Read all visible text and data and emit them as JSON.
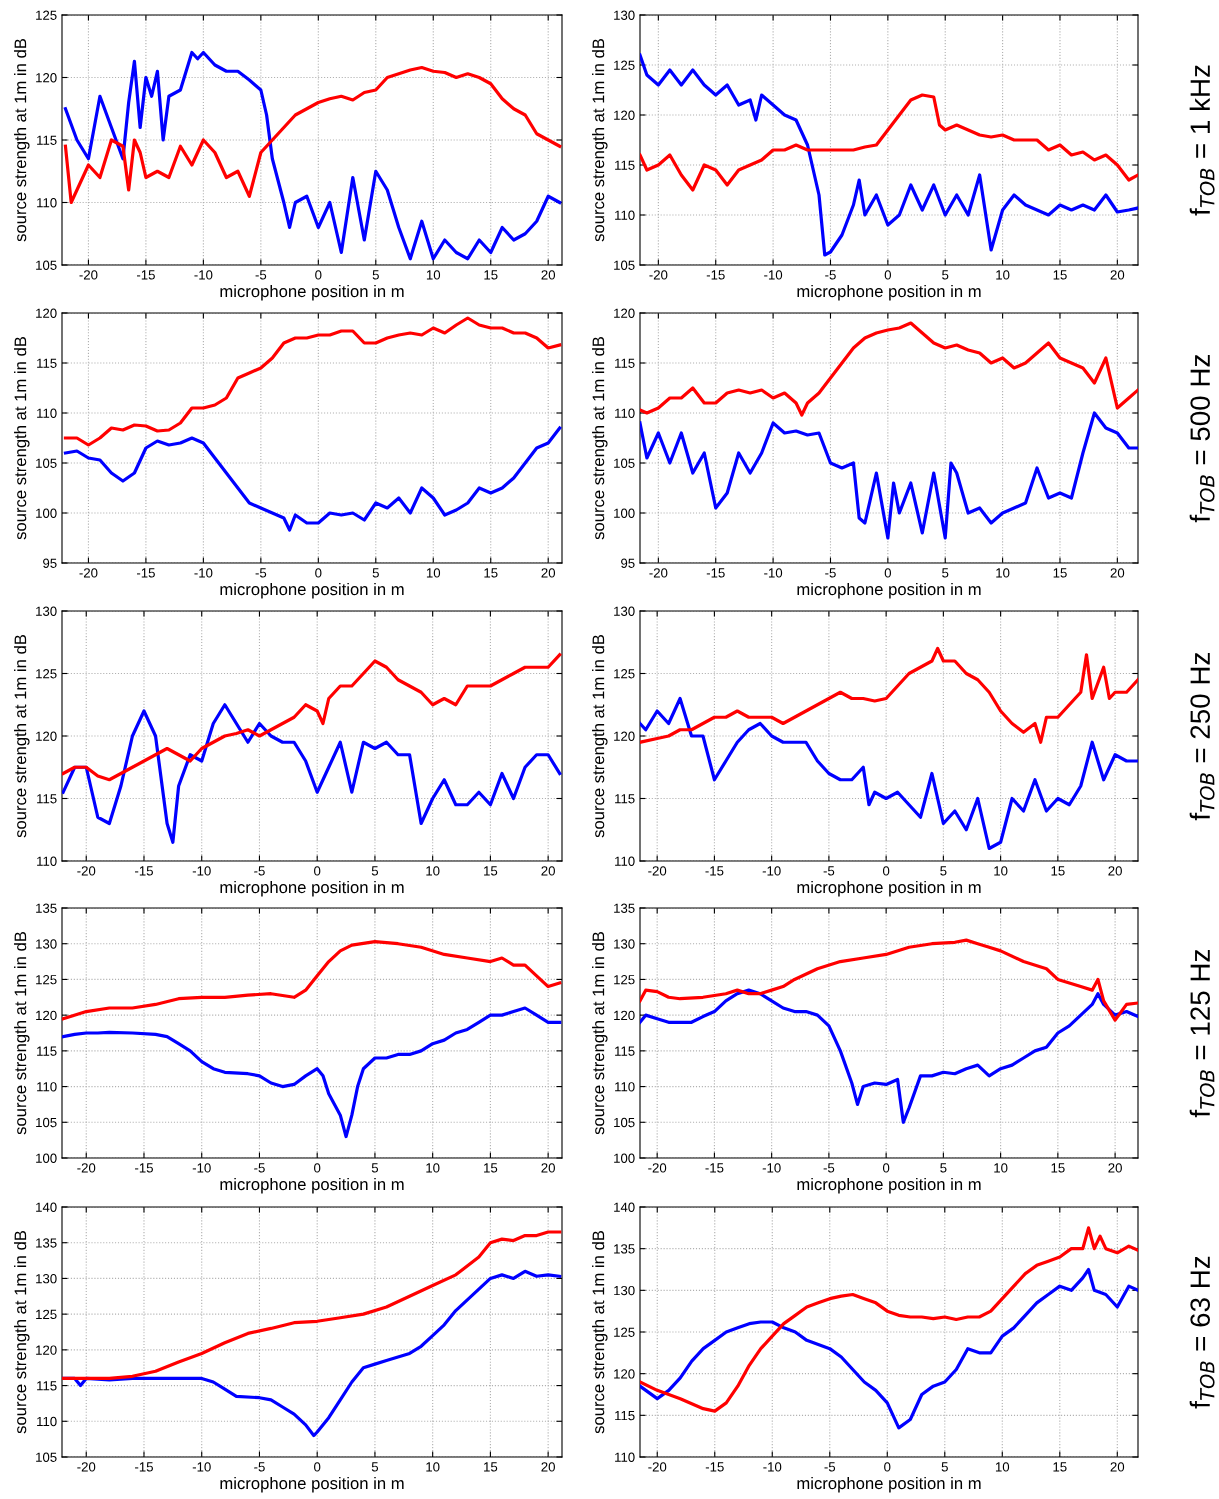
{
  "chart_data": [
    {
      "type": "line",
      "xlabel": "microphone position in m",
      "ylabel": "source strength at 1m in dB",
      "xlim": [
        -22.3,
        21.2
      ],
      "xticks": [
        -20,
        -15,
        -10,
        -5,
        0,
        5,
        10,
        15,
        20
      ],
      "ylim": [
        105,
        125
      ],
      "yticks": [
        105,
        110,
        115,
        120,
        125
      ],
      "grid": true,
      "series": [
        {
          "color": "#ff0000",
          "x": [
            -22,
            -21.5,
            -20,
            -19,
            -18,
            -17,
            -16.5,
            -16,
            -15.5,
            -15,
            -14,
            -13,
            -12,
            -11,
            -10,
            -9,
            -8,
            -7,
            -6,
            -5,
            -4,
            -3,
            -2,
            -1,
            0,
            1,
            2,
            3,
            4,
            5,
            6,
            7,
            8,
            9,
            10,
            11,
            12,
            13,
            14,
            15,
            16,
            17,
            18,
            19,
            20,
            21
          ],
          "values": [
            114.5,
            110,
            113,
            112,
            115,
            114.5,
            111,
            115,
            114,
            112,
            112.5,
            112,
            114.5,
            113,
            115,
            114,
            112,
            112.5,
            110.5,
            114,
            115,
            116,
            117,
            117.5,
            118,
            118.3,
            118.5,
            118.2,
            118.8,
            119,
            120,
            120.3,
            120.6,
            120.8,
            120.5,
            120.4,
            120,
            120.3,
            120,
            119.5,
            118.3,
            117.5,
            117,
            115.5,
            115,
            114.5
          ]
        },
        {
          "color": "#0000ff",
          "x": [
            -22,
            -21,
            -20,
            -19.5,
            -19,
            -18,
            -17,
            -16.5,
            -16,
            -15.5,
            -15,
            -14.5,
            -14,
            -13.5,
            -13,
            -12,
            -11,
            -10.5,
            -10,
            -9,
            -8,
            -7,
            -6,
            -5,
            -4.5,
            -4,
            -3,
            -2.5,
            -2,
            -1,
            0,
            1,
            2,
            3,
            4,
            5,
            6,
            7,
            8,
            9,
            10,
            11,
            12,
            13,
            14,
            15,
            16,
            17,
            18,
            19,
            20,
            21
          ],
          "values": [
            117.5,
            115,
            113.5,
            116,
            118.5,
            116,
            113.5,
            118,
            121.3,
            116,
            120,
            118.5,
            120.5,
            115,
            118.5,
            119,
            122,
            121.5,
            122,
            121,
            120.5,
            120.5,
            119.8,
            119,
            117,
            113.5,
            110,
            108,
            110,
            110.5,
            108,
            110,
            106,
            112,
            107,
            112.5,
            111,
            108,
            105.5,
            108.5,
            105.5,
            107,
            106,
            105.5,
            107,
            106,
            108,
            107,
            107.5,
            108.5,
            110.5,
            110
          ]
        }
      ]
    },
    {
      "type": "line",
      "xlabel": "microphone position in m",
      "ylabel": "source strength at 1m in dB",
      "xlim": [
        -21.6,
        21.8
      ],
      "xticks": [
        -20,
        -15,
        -10,
        -5,
        0,
        5,
        10,
        15,
        20
      ],
      "ylim": [
        105,
        130
      ],
      "yticks": [
        105,
        110,
        115,
        120,
        125,
        130
      ],
      "grid": true,
      "annotations": [
        "f$_{TOB}$ = 1 kHz"
      ],
      "series": [
        {
          "color": "#ff0000",
          "x": [
            -21.6,
            -21,
            -20,
            -19,
            -18,
            -17,
            -16,
            -15,
            -14,
            -13,
            -12,
            -11,
            -10,
            -9,
            -8,
            -7,
            -6,
            -5,
            -4,
            -3,
            -2,
            -1,
            0,
            1,
            2,
            3,
            4,
            4.5,
            5,
            6,
            7,
            8,
            9,
            10,
            11,
            12,
            13,
            14,
            15,
            16,
            17,
            18,
            19,
            20,
            21,
            21.8
          ],
          "values": [
            116,
            114.5,
            115,
            116,
            114,
            112.5,
            115,
            114.5,
            113,
            114.5,
            115,
            115.5,
            116.5,
            116.5,
            117,
            116.5,
            116.5,
            116.5,
            116.5,
            116.5,
            116.8,
            117,
            118.5,
            120,
            121.5,
            122,
            121.8,
            119,
            118.5,
            119,
            118.5,
            118,
            117.8,
            118,
            117.5,
            117.5,
            117.5,
            116.5,
            117,
            116,
            116.3,
            115.5,
            116,
            115,
            113.5,
            114
          ]
        },
        {
          "color": "#0000ff",
          "x": [
            -21.6,
            -21,
            -20,
            -19,
            -18,
            -17,
            -16,
            -15,
            -14,
            -13,
            -12,
            -11.5,
            -11,
            -10,
            -9,
            -8,
            -7,
            -6,
            -5.5,
            -5,
            -4,
            -3,
            -2.5,
            -2,
            -1,
            0,
            1,
            2,
            3,
            4,
            5,
            6,
            7,
            8,
            9,
            10,
            11,
            12,
            13,
            14,
            15,
            16,
            17,
            18,
            19,
            20,
            21,
            21.8
          ],
          "values": [
            126,
            124,
            123,
            124.5,
            123,
            124.5,
            123,
            122,
            123,
            121,
            121.5,
            119.5,
            122,
            121,
            120,
            119.5,
            117,
            112,
            106,
            106.3,
            108,
            111,
            113.5,
            110,
            112,
            109,
            110,
            113,
            110.5,
            113,
            110,
            112,
            110,
            114,
            106.5,
            110.5,
            112,
            111,
            110.5,
            110,
            111,
            110.5,
            111,
            110.5,
            112,
            110.3,
            110.5,
            110.7
          ]
        }
      ]
    },
    {
      "type": "line",
      "xlabel": "microphone position in m",
      "ylabel": "source strength at 1m in dB",
      "xlim": [
        -22.3,
        21.2
      ],
      "xticks": [
        -20,
        -15,
        -10,
        -5,
        0,
        5,
        10,
        15,
        20
      ],
      "ylim": [
        95,
        120
      ],
      "yticks": [
        95,
        100,
        105,
        110,
        115,
        120
      ],
      "grid": true,
      "series": [
        {
          "color": "#ff0000",
          "x": [
            -22,
            -21,
            -20,
            -19,
            -18,
            -17,
            -16,
            -15,
            -14,
            -13,
            -12,
            -11,
            -10,
            -9,
            -8,
            -7,
            -6,
            -5,
            -4,
            -3,
            -2,
            -1,
            0,
            1,
            2,
            3,
            4,
            5,
            6,
            7,
            8,
            9,
            10,
            11,
            12,
            13,
            14,
            15,
            16,
            17,
            18,
            19,
            20,
            21
          ],
          "values": [
            107.5,
            107.5,
            106.8,
            107.5,
            108.5,
            108.3,
            108.8,
            108.7,
            108.2,
            108.3,
            109,
            110.5,
            110.5,
            110.8,
            111.5,
            113.5,
            114,
            114.5,
            115.5,
            117,
            117.5,
            117.5,
            117.8,
            117.8,
            118.2,
            118.2,
            117,
            117,
            117.5,
            117.8,
            118,
            117.8,
            118.5,
            118,
            118.8,
            119.5,
            118.8,
            118.5,
            118.5,
            118,
            118,
            117.5,
            116.5,
            116.8
          ]
        },
        {
          "color": "#0000ff",
          "x": [
            -22,
            -21,
            -20,
            -19,
            -18,
            -17,
            -16,
            -15,
            -14,
            -13,
            -12,
            -11,
            -10,
            -9,
            -8,
            -7,
            -6,
            -5,
            -4,
            -3,
            -2.5,
            -2,
            -1,
            0,
            1,
            2,
            3,
            4,
            5,
            6,
            7,
            8,
            9,
            10,
            11,
            12,
            13,
            14,
            15,
            16,
            17,
            18,
            19,
            20,
            21
          ],
          "values": [
            106,
            106.2,
            105.5,
            105.3,
            104,
            103.2,
            104,
            106.5,
            107.2,
            106.8,
            107,
            107.5,
            107,
            105.5,
            104,
            102.5,
            101,
            100.5,
            100,
            99.5,
            98.3,
            99.8,
            99,
            99,
            100,
            99.8,
            100,
            99.3,
            101,
            100.5,
            101.5,
            100,
            102.5,
            101.5,
            99.8,
            100.3,
            101,
            102.5,
            102,
            102.5,
            103.5,
            105,
            106.5,
            107,
            108.5
          ]
        }
      ]
    },
    {
      "type": "line",
      "xlabel": "microphone position in m",
      "ylabel": "source strength at 1m in dB",
      "xlim": [
        -21.6,
        21.8
      ],
      "xticks": [
        -20,
        -15,
        -10,
        -5,
        0,
        5,
        10,
        15,
        20
      ],
      "ylim": [
        95,
        120
      ],
      "yticks": [
        95,
        100,
        105,
        110,
        115,
        120
      ],
      "grid": true,
      "annotations": [
        "f$_{TOB}$ = 500 Hz"
      ],
      "series": [
        {
          "color": "#ff0000",
          "x": [
            -21.6,
            -21,
            -20,
            -19,
            -18,
            -17,
            -16,
            -15,
            -14,
            -13,
            -12,
            -11,
            -10,
            -9,
            -8,
            -7.5,
            -7,
            -6,
            -5,
            -4,
            -3,
            -2,
            -1,
            0,
            1,
            2,
            3,
            4,
            5,
            6,
            7,
            8,
            9,
            10,
            11,
            12,
            13,
            14,
            15,
            16,
            17,
            18,
            19,
            20,
            21,
            21.8
          ],
          "values": [
            110.3,
            110,
            110.5,
            111.5,
            111.5,
            112.5,
            111,
            111,
            112,
            112.3,
            112,
            112.3,
            111.5,
            112,
            111,
            109.8,
            111,
            112,
            113.5,
            115,
            116.5,
            117.5,
            118,
            118.3,
            118.5,
            119,
            118,
            117,
            116.5,
            116.8,
            116.3,
            116,
            115,
            115.5,
            114.5,
            115,
            116,
            117,
            115.5,
            115,
            114.5,
            113,
            115.5,
            110.5,
            111.5,
            112.3
          ]
        },
        {
          "color": "#0000ff",
          "x": [
            -21.6,
            -21,
            -20,
            -19,
            -18,
            -17,
            -16,
            -15,
            -14,
            -13,
            -12,
            -11,
            -10,
            -9,
            -8,
            -7,
            -6,
            -5,
            -4,
            -3,
            -2.5,
            -2,
            -1,
            0,
            0.5,
            1,
            2,
            3,
            4,
            5,
            5.5,
            6,
            7,
            8,
            9,
            10,
            11,
            12,
            13,
            14,
            15,
            16,
            17,
            18,
            19,
            20,
            21,
            21.8
          ],
          "values": [
            109,
            105.5,
            108,
            105,
            108,
            104,
            106,
            100.5,
            102,
            106,
            104,
            106,
            109,
            108,
            108.2,
            107.8,
            108,
            105,
            104.5,
            105,
            99.5,
            99,
            104,
            97.5,
            103,
            100,
            103,
            98,
            104,
            97.5,
            105,
            104,
            100,
            100.5,
            99,
            100,
            100.5,
            101,
            104.5,
            101.5,
            102,
            101.5,
            106,
            110,
            108.5,
            108,
            106.5,
            106.5
          ]
        }
      ]
    },
    {
      "type": "line",
      "xlabel": "microphone position in m",
      "ylabel": "source strength at 1m in dB",
      "xlim": [
        -22.1,
        21.2
      ],
      "xticks": [
        -20,
        -15,
        -10,
        -5,
        0,
        5,
        10,
        15,
        20
      ],
      "ylim": [
        110,
        130
      ],
      "yticks": [
        110,
        115,
        120,
        125,
        130
      ],
      "grid": true,
      "series": [
        {
          "color": "#ff0000",
          "x": [
            -22,
            -21,
            -20,
            -19,
            -18,
            -17,
            -16,
            -15,
            -14,
            -13,
            -12,
            -11,
            -10,
            -9,
            -8,
            -7,
            -6,
            -5,
            -4,
            -3,
            -2,
            -1,
            0,
            0.5,
            1,
            2,
            3,
            4,
            5,
            6,
            7,
            8,
            9,
            10,
            11,
            12,
            13,
            14,
            15,
            16,
            17,
            18,
            19,
            20,
            21
          ],
          "values": [
            117,
            117.5,
            117.5,
            116.8,
            116.5,
            117,
            117.5,
            118,
            118.5,
            119,
            118.5,
            118,
            119,
            119.5,
            120,
            120.2,
            120.5,
            120,
            120.5,
            121,
            121.5,
            122.5,
            122,
            121,
            123,
            124,
            124,
            125,
            126,
            125.5,
            124.5,
            124,
            123.5,
            122.5,
            123,
            122.5,
            124,
            124,
            124,
            124.5,
            125,
            125.5,
            125.5,
            125.5,
            126.5
          ]
        },
        {
          "color": "#0000ff",
          "x": [
            -22,
            -21,
            -20,
            -19,
            -18,
            -17,
            -16,
            -15,
            -14,
            -13,
            -12.5,
            -12,
            -11,
            -10,
            -9,
            -8,
            -7,
            -6,
            -5,
            -4,
            -3,
            -2,
            -1,
            0,
            1,
            2,
            3,
            4,
            5,
            6,
            7,
            8,
            9,
            10,
            11,
            12,
            13,
            14,
            15,
            16,
            17,
            18,
            19,
            20,
            21
          ],
          "values": [
            115.5,
            117.5,
            117.5,
            113.5,
            113,
            116,
            120,
            122,
            120,
            113,
            111.5,
            116,
            118.5,
            118,
            121,
            122.5,
            121,
            119.5,
            121,
            120,
            119.5,
            119.5,
            118,
            115.5,
            117.5,
            119.5,
            115.5,
            119.5,
            119,
            119.5,
            118.5,
            118.5,
            113,
            115,
            116.5,
            114.5,
            114.5,
            115.5,
            114.5,
            117,
            115,
            117.5,
            118.5,
            118.5,
            117
          ]
        }
      ]
    },
    {
      "type": "line",
      "xlabel": "microphone position in m",
      "ylabel": "source strength at 1m in dB",
      "xlim": [
        -21.5,
        22.0
      ],
      "xticks": [
        -20,
        -15,
        -10,
        -5,
        0,
        5,
        10,
        15,
        20
      ],
      "ylim": [
        110,
        130
      ],
      "yticks": [
        110,
        115,
        120,
        125,
        130
      ],
      "grid": true,
      "annotations": [
        "f$_{TOB}$ = 250 Hz"
      ],
      "series": [
        {
          "color": "#ff0000",
          "x": [
            -21.5,
            -20,
            -19,
            -18,
            -17,
            -16,
            -15,
            -14,
            -13,
            -12,
            -11,
            -10,
            -9,
            -8,
            -7,
            -6,
            -5,
            -4,
            -3,
            -2,
            -1,
            0,
            1,
            2,
            3,
            4,
            4.5,
            5,
            6,
            7,
            8,
            9,
            10,
            11,
            12,
            13,
            13.5,
            14,
            15,
            16,
            17,
            17.5,
            18,
            19,
            19.5,
            20,
            21,
            22
          ],
          "values": [
            119.5,
            119.8,
            120,
            120.5,
            120.5,
            121,
            121.5,
            121.5,
            122,
            121.5,
            121.5,
            121.5,
            121,
            121.5,
            122,
            122.5,
            123,
            123.5,
            123,
            123,
            122.8,
            123,
            124,
            125,
            125.5,
            126,
            127,
            126,
            126,
            125,
            124.5,
            123.5,
            122,
            121,
            120.3,
            121,
            119.5,
            121.5,
            121.5,
            122.5,
            123.5,
            126.5,
            123,
            125.5,
            123,
            123.5,
            123.5,
            124.5
          ]
        },
        {
          "color": "#0000ff",
          "x": [
            -21.5,
            -21,
            -20,
            -19,
            -18,
            -17,
            -16,
            -15,
            -14,
            -13,
            -12,
            -11,
            -10,
            -9,
            -8,
            -7,
            -6,
            -5,
            -4,
            -3,
            -2,
            -1.5,
            -1,
            0,
            1,
            2,
            3,
            4,
            5,
            6,
            7,
            8,
            9,
            10,
            11,
            12,
            13,
            14,
            15,
            16,
            17,
            18,
            19,
            20,
            21,
            22
          ],
          "values": [
            121,
            120.5,
            122,
            121,
            123,
            120,
            120,
            116.5,
            118,
            119.5,
            120.5,
            121,
            120,
            119.5,
            119.5,
            119.5,
            118,
            117,
            116.5,
            116.5,
            117.5,
            114.5,
            115.5,
            115,
            115.5,
            114.5,
            113.5,
            117,
            113,
            114,
            112.5,
            115,
            111,
            111.5,
            115,
            114,
            116.5,
            114,
            115,
            114.5,
            116,
            119.5,
            116.5,
            118.5,
            118,
            118
          ]
        }
      ]
    },
    {
      "type": "line",
      "xlabel": "microphone position in m",
      "ylabel": "source strength at 1m in dB",
      "xlim": [
        -22.1,
        21.2
      ],
      "xticks": [
        -20,
        -15,
        -10,
        -5,
        0,
        5,
        10,
        15,
        20
      ],
      "ylim": [
        100,
        135
      ],
      "yticks": [
        100,
        105,
        110,
        115,
        120,
        125,
        130,
        135
      ],
      "grid": true,
      "series": [
        {
          "color": "#ff0000",
          "x": [
            -22,
            -20,
            -18,
            -16,
            -14,
            -12,
            -10,
            -8,
            -6,
            -4,
            -2,
            -1,
            0,
            1,
            2,
            3,
            5,
            7,
            9,
            11,
            13,
            15,
            16,
            17,
            18,
            19,
            20,
            21
          ],
          "values": [
            119.5,
            120.5,
            121,
            121,
            121.5,
            122.3,
            122.5,
            122.5,
            122.8,
            123,
            122.5,
            123.5,
            125.5,
            127.5,
            129,
            129.8,
            130.3,
            130,
            129.5,
            128.5,
            128,
            127.5,
            128,
            127,
            127,
            125.5,
            124,
            124.5
          ]
        },
        {
          "color": "#0000ff",
          "x": [
            -22,
            -21,
            -20,
            -19,
            -18,
            -16,
            -14,
            -13,
            -12,
            -11,
            -10,
            -9,
            -8,
            -6,
            -5,
            -4,
            -3,
            -2,
            -1,
            0,
            0.5,
            1,
            2,
            2.5,
            3,
            3.5,
            4,
            5,
            6,
            7,
            8,
            9,
            10,
            11,
            12,
            13,
            14,
            15,
            16,
            17,
            18,
            19,
            20,
            21
          ],
          "values": [
            117,
            117.3,
            117.5,
            117.5,
            117.6,
            117.5,
            117.3,
            117,
            116,
            115,
            113.5,
            112.5,
            112,
            111.8,
            111.5,
            110.5,
            110,
            110.3,
            111.5,
            112.5,
            111.5,
            109,
            106,
            103,
            106,
            110,
            112.5,
            114,
            114,
            114.5,
            114.5,
            115,
            116,
            116.5,
            117.5,
            118,
            119,
            120,
            120,
            120.5,
            121,
            120,
            119,
            119
          ]
        }
      ]
    },
    {
      "type": "line",
      "xlabel": "microphone position in m",
      "ylabel": "source strength at 1m in dB",
      "xlim": [
        -21.5,
        22.0
      ],
      "xticks": [
        -20,
        -15,
        -10,
        -5,
        0,
        5,
        10,
        15,
        20
      ],
      "ylim": [
        100,
        135
      ],
      "yticks": [
        100,
        105,
        110,
        115,
        120,
        125,
        130,
        135
      ],
      "grid": true,
      "annotations": [
        "f$_{TOB}$ = 125 Hz"
      ],
      "series": [
        {
          "color": "#ff0000",
          "x": [
            -21.5,
            -21,
            -20,
            -19,
            -18,
            -16,
            -14,
            -13,
            -12,
            -11,
            -10,
            -9,
            -8,
            -6,
            -4,
            -2,
            0,
            2,
            4,
            6,
            7,
            8,
            9,
            10,
            12,
            14,
            15,
            17,
            18,
            18.5,
            19,
            20,
            21,
            22
          ],
          "values": [
            122,
            123.5,
            123.3,
            122.5,
            122.3,
            122.5,
            123,
            123.5,
            123,
            123,
            123.5,
            124,
            125,
            126.5,
            127.5,
            128,
            128.5,
            129.5,
            130,
            130.2,
            130.5,
            130,
            129.5,
            129,
            127.5,
            126.5,
            125,
            124,
            123.5,
            125,
            122,
            119.3,
            121.5,
            121.7
          ]
        },
        {
          "color": "#0000ff",
          "x": [
            -21.5,
            -21,
            -20,
            -19,
            -17,
            -16,
            -15,
            -14,
            -13,
            -12,
            -11,
            -10,
            -9,
            -8,
            -7,
            -6,
            -5,
            -4,
            -3,
            -2.5,
            -2,
            -1,
            0,
            1,
            1.5,
            2,
            3,
            4,
            5,
            6,
            7,
            8,
            9,
            10,
            11,
            12,
            13,
            14,
            15,
            16,
            17,
            18,
            18.5,
            19,
            20,
            21,
            22
          ],
          "values": [
            119,
            120,
            119.5,
            119,
            119,
            119.8,
            120.5,
            122,
            123,
            123.5,
            123,
            122,
            121,
            120.5,
            120.5,
            120,
            118.5,
            115,
            110.5,
            107.5,
            110,
            110.5,
            110.3,
            111,
            105,
            107,
            111.5,
            111.5,
            112,
            111.8,
            112.5,
            113,
            111.5,
            112.5,
            113,
            114,
            115,
            115.5,
            117.5,
            118.5,
            120,
            121.5,
            123,
            121.5,
            120,
            120.5,
            119.8
          ]
        }
      ]
    },
    {
      "type": "line",
      "xlabel": "microphone position in m",
      "ylabel": "source strength at 1m in dB",
      "xlim": [
        -22.1,
        21.2
      ],
      "xticks": [
        -20,
        -15,
        -10,
        -5,
        0,
        5,
        10,
        15,
        20
      ],
      "ylim": [
        105,
        140
      ],
      "yticks": [
        105,
        110,
        115,
        120,
        125,
        130,
        135,
        140
      ],
      "grid": true,
      "series": [
        {
          "color": "#ff0000",
          "x": [
            -22,
            -20,
            -18,
            -16,
            -14,
            -12,
            -10,
            -8,
            -6,
            -4,
            -2,
            0,
            2,
            4,
            6,
            8,
            10,
            12,
            14,
            15,
            16,
            17,
            18,
            19,
            20,
            21
          ],
          "values": [
            116,
            116,
            116,
            116.3,
            117,
            118.3,
            119.5,
            121,
            122.3,
            123,
            123.8,
            124,
            124.5,
            125,
            126,
            127.5,
            129,
            130.5,
            133,
            135,
            135.5,
            135.3,
            136,
            136,
            136.5,
            136.5
          ]
        },
        {
          "color": "#0000ff",
          "x": [
            -22,
            -21,
            -20.5,
            -20,
            -18,
            -16,
            -14,
            -12,
            -10,
            -9,
            -8,
            -7,
            -5,
            -4,
            -3,
            -2,
            -1,
            -0.3,
            0,
            1,
            2,
            3,
            4,
            5,
            6,
            7,
            8,
            9,
            10,
            11,
            12,
            13,
            14,
            15,
            16,
            17,
            18,
            19,
            20,
            21
          ],
          "values": [
            116,
            116,
            115,
            116,
            115.8,
            116,
            116,
            116,
            116,
            115.5,
            114.5,
            113.5,
            113.3,
            113,
            112,
            111,
            109.5,
            108,
            108.5,
            110.5,
            113,
            115.5,
            117.5,
            118,
            118.5,
            119,
            119.5,
            120.5,
            122,
            123.5,
            125.5,
            127,
            128.5,
            130,
            130.5,
            130,
            131,
            130.3,
            130.5,
            130.3
          ]
        }
      ]
    },
    {
      "type": "line",
      "xlabel": "microphone position in m",
      "ylabel": "source strength at 1m in dB",
      "xlim": [
        -21.5,
        21.8
      ],
      "xticks": [
        -20,
        -15,
        -10,
        -5,
        0,
        5,
        10,
        15,
        20
      ],
      "ylim": [
        110,
        140
      ],
      "yticks": [
        110,
        115,
        120,
        125,
        130,
        135,
        140
      ],
      "grid": true,
      "annotations": [
        "f$_{TOB}$ = 63 Hz"
      ],
      "series": [
        {
          "color": "#ff0000",
          "x": [
            -21.5,
            -20,
            -18,
            -16,
            -15,
            -14,
            -13,
            -12,
            -11,
            -10,
            -9,
            -8,
            -7,
            -6,
            -5,
            -4,
            -3,
            -2,
            -1,
            0,
            1,
            2,
            3,
            4,
            5,
            6,
            7,
            8,
            9,
            10,
            11,
            12,
            13,
            14,
            15,
            16,
            17,
            17.5,
            18,
            18.5,
            19,
            20,
            21,
            21.8
          ],
          "values": [
            119,
            118,
            117,
            115.8,
            115.5,
            116.5,
            118.5,
            121,
            123,
            124.5,
            126,
            127,
            128,
            128.5,
            129,
            129.3,
            129.5,
            129,
            128.5,
            127.5,
            127,
            126.8,
            126.8,
            126.6,
            126.8,
            126.5,
            126.8,
            126.8,
            127.5,
            129,
            130.5,
            132,
            133,
            133.5,
            134,
            135,
            135,
            137.5,
            135,
            136.5,
            135,
            134.5,
            135.3,
            134.8
          ]
        },
        {
          "color": "#0000ff",
          "x": [
            -21.5,
            -20,
            -19,
            -18,
            -17,
            -16,
            -15,
            -14,
            -13,
            -12,
            -11,
            -10,
            -9,
            -8,
            -7,
            -6,
            -5,
            -4,
            -3,
            -2,
            -1,
            0,
            0.5,
            1,
            2,
            3,
            4,
            5,
            6,
            7,
            8,
            9,
            10,
            11,
            12,
            13,
            14,
            15,
            16,
            17,
            17.5,
            18,
            19,
            20,
            21,
            21.8
          ],
          "values": [
            118.5,
            117,
            118,
            119.5,
            121.5,
            123,
            124,
            125,
            125.5,
            126,
            126.2,
            126.2,
            125.5,
            125,
            124,
            123.5,
            123,
            122,
            120.5,
            119,
            118,
            116.5,
            115,
            113.5,
            114.5,
            117.5,
            118.5,
            119,
            120.5,
            123,
            122.5,
            122.5,
            124.5,
            125.5,
            127,
            128.5,
            129.5,
            130.5,
            130,
            131.5,
            132.5,
            130,
            129.5,
            128,
            130.5,
            130
          ]
        }
      ]
    }
  ]
}
